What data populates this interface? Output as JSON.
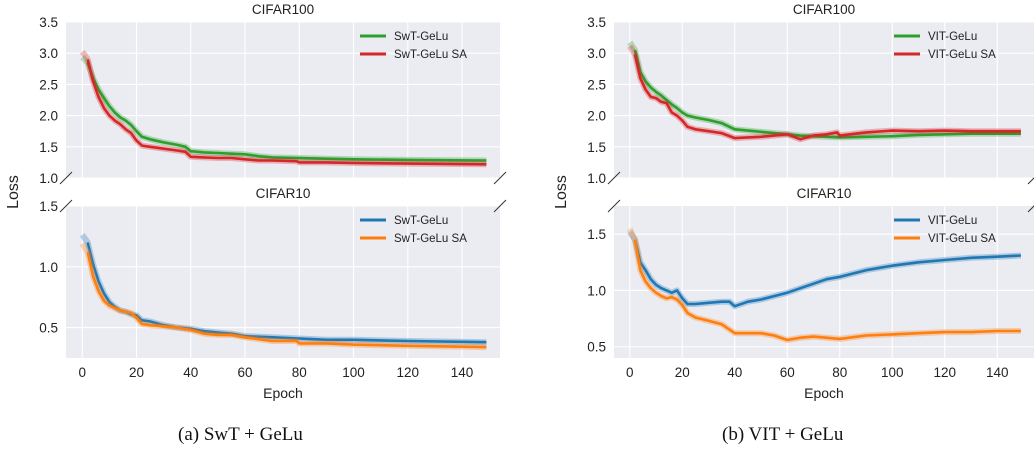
{
  "captions": {
    "left": "(a) SwT + GeLu",
    "right": "(b) VIT + GeLu"
  },
  "colors": {
    "green": "#2ca02c",
    "red": "#d62728",
    "blue": "#1f77b4",
    "orange": "#ff7f0e",
    "panel_bg": "#ebebf2",
    "grid": "#ffffff"
  },
  "chart_data": [
    {
      "type": "line",
      "title": "CIFAR100",
      "xlabel": "",
      "ylabel": "Loss",
      "xlim": [
        -6,
        154
      ],
      "ylim": [
        1.0,
        3.5
      ],
      "yticks": [
        1.0,
        1.5,
        2.0,
        2.5,
        3.0,
        3.5
      ],
      "grid": true,
      "legend": "top-right",
      "series": [
        {
          "name": "SwT-GeLu",
          "color": "#2ca02c",
          "x": [
            2,
            4,
            6,
            8,
            10,
            12,
            14,
            16,
            18,
            20,
            22,
            25,
            30,
            35,
            38,
            40,
            45,
            50,
            55,
            60,
            65,
            70,
            80,
            90,
            100,
            120,
            149
          ],
          "y": [
            2.85,
            2.6,
            2.42,
            2.28,
            2.15,
            2.05,
            1.97,
            1.92,
            1.85,
            1.75,
            1.66,
            1.62,
            1.57,
            1.53,
            1.5,
            1.43,
            1.41,
            1.4,
            1.39,
            1.38,
            1.35,
            1.33,
            1.32,
            1.31,
            1.3,
            1.29,
            1.28
          ]
        },
        {
          "name": "SwT-GeLu SA",
          "color": "#d62728",
          "x": [
            2,
            4,
            6,
            8,
            10,
            12,
            14,
            16,
            18,
            20,
            22,
            25,
            30,
            35,
            38,
            40,
            45,
            50,
            55,
            60,
            65,
            70,
            79,
            80,
            90,
            100,
            120,
            149
          ],
          "y": [
            2.9,
            2.55,
            2.3,
            2.12,
            2.0,
            1.92,
            1.86,
            1.78,
            1.72,
            1.6,
            1.52,
            1.5,
            1.47,
            1.44,
            1.42,
            1.34,
            1.33,
            1.32,
            1.32,
            1.3,
            1.28,
            1.28,
            1.27,
            1.25,
            1.25,
            1.24,
            1.23,
            1.22
          ]
        }
      ]
    },
    {
      "type": "line",
      "title": "CIFAR10",
      "xlabel": "Epoch",
      "ylabel": "",
      "xlim": [
        -6,
        154
      ],
      "ylim": [
        0.25,
        1.5
      ],
      "yticks": [
        0.5,
        1.0,
        1.5
      ],
      "xticks": [
        0,
        20,
        40,
        60,
        80,
        100,
        120,
        140
      ],
      "grid": true,
      "legend": "top-right",
      "series": [
        {
          "name": "SwT-GeLu",
          "color": "#1f77b4",
          "x": [
            2,
            4,
            6,
            8,
            10,
            12,
            14,
            16,
            18,
            20,
            22,
            25,
            30,
            35,
            40,
            45,
            50,
            55,
            60,
            70,
            80,
            90,
            100,
            120,
            149
          ],
          "y": [
            1.2,
            1.02,
            0.88,
            0.78,
            0.71,
            0.67,
            0.64,
            0.63,
            0.61,
            0.6,
            0.56,
            0.55,
            0.52,
            0.5,
            0.49,
            0.47,
            0.46,
            0.45,
            0.43,
            0.42,
            0.41,
            0.4,
            0.4,
            0.39,
            0.38
          ]
        },
        {
          "name": "SwT-GeLu SA",
          "color": "#ff7f0e",
          "x": [
            2,
            4,
            6,
            8,
            10,
            12,
            14,
            16,
            18,
            20,
            22,
            25,
            30,
            35,
            40,
            45,
            50,
            55,
            60,
            70,
            79,
            80,
            90,
            100,
            120,
            149
          ],
          "y": [
            1.12,
            0.92,
            0.8,
            0.72,
            0.68,
            0.66,
            0.64,
            0.63,
            0.62,
            0.58,
            0.53,
            0.52,
            0.51,
            0.5,
            0.48,
            0.45,
            0.44,
            0.44,
            0.42,
            0.39,
            0.39,
            0.37,
            0.37,
            0.36,
            0.35,
            0.34
          ]
        }
      ]
    },
    {
      "type": "line",
      "title": "CIFAR100",
      "xlabel": "",
      "ylabel": "Loss",
      "xlim": [
        -6,
        154
      ],
      "ylim": [
        1.0,
        3.5
      ],
      "yticks": [
        1.0,
        1.5,
        2.0,
        2.5,
        3.0,
        3.5
      ],
      "grid": true,
      "legend": "top-right",
      "series": [
        {
          "name": "VIT-GeLu",
          "color": "#2ca02c",
          "x": [
            2,
            4,
            6,
            8,
            10,
            12,
            14,
            16,
            18,
            20,
            22,
            25,
            30,
            35,
            40,
            45,
            50,
            55,
            60,
            65,
            70,
            80,
            90,
            100,
            110,
            120,
            130,
            149
          ],
          "y": [
            3.05,
            2.7,
            2.55,
            2.45,
            2.38,
            2.32,
            2.25,
            2.18,
            2.12,
            2.05,
            2.0,
            1.97,
            1.93,
            1.88,
            1.78,
            1.76,
            1.74,
            1.72,
            1.7,
            1.68,
            1.67,
            1.65,
            1.66,
            1.67,
            1.69,
            1.7,
            1.71,
            1.71
          ]
        },
        {
          "name": "VIT-GeLu SA",
          "color": "#d62728",
          "x": [
            2,
            4,
            6,
            8,
            10,
            12,
            14,
            16,
            18,
            20,
            22,
            25,
            30,
            35,
            40,
            45,
            50,
            55,
            60,
            65,
            70,
            75,
            79,
            80,
            90,
            100,
            110,
            120,
            130,
            149
          ],
          "y": [
            2.98,
            2.6,
            2.42,
            2.3,
            2.28,
            2.22,
            2.2,
            2.05,
            2.0,
            1.92,
            1.82,
            1.78,
            1.75,
            1.72,
            1.64,
            1.65,
            1.66,
            1.68,
            1.7,
            1.62,
            1.68,
            1.7,
            1.73,
            1.68,
            1.73,
            1.76,
            1.75,
            1.76,
            1.75,
            1.75
          ]
        }
      ]
    },
    {
      "type": "line",
      "title": "CIFAR10",
      "xlabel": "Epoch",
      "ylabel": "",
      "xlim": [
        -6,
        154
      ],
      "ylim": [
        0.4,
        1.75
      ],
      "yticks": [
        0.5,
        1.0,
        1.5
      ],
      "xticks": [
        0,
        20,
        40,
        60,
        80,
        100,
        120,
        140
      ],
      "grid": true,
      "legend": "top-right",
      "series": [
        {
          "name": "VIT-GeLu",
          "color": "#1f77b4",
          "x": [
            2,
            4,
            6,
            8,
            10,
            12,
            14,
            16,
            18,
            20,
            22,
            25,
            30,
            35,
            38,
            40,
            45,
            50,
            55,
            60,
            65,
            70,
            75,
            80,
            90,
            100,
            110,
            120,
            130,
            140,
            149
          ],
          "y": [
            1.45,
            1.25,
            1.18,
            1.1,
            1.05,
            1.02,
            1.0,
            0.98,
            1.0,
            0.93,
            0.88,
            0.88,
            0.89,
            0.9,
            0.9,
            0.86,
            0.9,
            0.92,
            0.95,
            0.98,
            1.02,
            1.06,
            1.1,
            1.12,
            1.18,
            1.22,
            1.25,
            1.27,
            1.29,
            1.3,
            1.31
          ]
        },
        {
          "name": "VIT-GeLu SA",
          "color": "#ff7f0e",
          "x": [
            2,
            4,
            6,
            8,
            10,
            12,
            14,
            16,
            18,
            20,
            22,
            25,
            30,
            35,
            40,
            45,
            50,
            55,
            60,
            65,
            70,
            80,
            90,
            100,
            110,
            120,
            130,
            140,
            149
          ],
          "y": [
            1.45,
            1.18,
            1.08,
            1.02,
            0.98,
            0.95,
            0.93,
            0.94,
            0.92,
            0.87,
            0.8,
            0.76,
            0.73,
            0.7,
            0.62,
            0.62,
            0.62,
            0.6,
            0.56,
            0.58,
            0.59,
            0.57,
            0.6,
            0.61,
            0.62,
            0.63,
            0.63,
            0.64,
            0.64
          ]
        }
      ]
    }
  ]
}
